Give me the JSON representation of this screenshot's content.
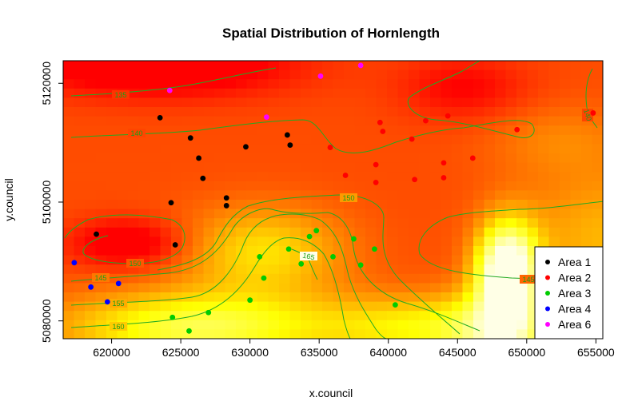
{
  "chart_data": {
    "type": "scatter",
    "title": "Spatial Distribution of Hornlength",
    "xlabel": "x.council",
    "ylabel": "y.council",
    "xlim": [
      616500,
      655500
    ],
    "ylim": [
      5077000,
      5123800
    ],
    "x_ticks": [
      "620000",
      "625000",
      "630000",
      "635000",
      "640000",
      "645000",
      "650000",
      "655000"
    ],
    "y_ticks": [
      "5080000",
      "5100000",
      "5120000"
    ],
    "x_tick_values": [
      620000,
      625000,
      630000,
      635000,
      640000,
      645000,
      650000,
      655000
    ],
    "y_tick_values": [
      5080000,
      5100000,
      5120000
    ],
    "background": "heatmap of interpolated hornlength, red (low) to pale yellow (high)",
    "contour_color": "#22aa22",
    "contour_levels": [
      "135",
      "140",
      "145",
      "150",
      "155",
      "160",
      "165"
    ],
    "legend_position": "bottom-right",
    "series": [
      {
        "name": "Area 1",
        "color": "#000000",
        "points": [
          [
            618900,
            5094600
          ],
          [
            623500,
            5114200
          ],
          [
            624300,
            5099900
          ],
          [
            624600,
            5092800
          ],
          [
            625700,
            5110800
          ],
          [
            626300,
            5107400
          ],
          [
            626600,
            5104000
          ],
          [
            628300,
            5100700
          ],
          [
            628300,
            5099400
          ],
          [
            629700,
            5109300
          ],
          [
            632700,
            5111300
          ],
          [
            632900,
            5109600
          ]
        ]
      },
      {
        "name": "Area 2",
        "color": "#ff0000",
        "points": [
          [
            635800,
            5109200
          ],
          [
            636900,
            5104500
          ],
          [
            639100,
            5106300
          ],
          [
            639100,
            5103300
          ],
          [
            639400,
            5113400
          ],
          [
            639600,
            5111900
          ],
          [
            641700,
            5110600
          ],
          [
            641900,
            5103800
          ],
          [
            642700,
            5113700
          ],
          [
            644000,
            5106600
          ],
          [
            644000,
            5104100
          ],
          [
            644300,
            5114500
          ],
          [
            646100,
            5107400
          ],
          [
            649300,
            5112200
          ],
          [
            654800,
            5115000
          ]
        ]
      },
      {
        "name": "Area 3",
        "color": "#00cc00",
        "points": [
          [
            624400,
            5080600
          ],
          [
            625600,
            5078300
          ],
          [
            627000,
            5081400
          ],
          [
            630000,
            5083500
          ],
          [
            630700,
            5090800
          ],
          [
            631000,
            5087200
          ],
          [
            632800,
            5092100
          ],
          [
            633700,
            5089600
          ],
          [
            634300,
            5094200
          ],
          [
            634800,
            5095200
          ],
          [
            636000,
            5090800
          ],
          [
            637500,
            5093800
          ],
          [
            638000,
            5089400
          ],
          [
            639000,
            5092100
          ],
          [
            640500,
            5082700
          ]
        ]
      },
      {
        "name": "Area 4",
        "color": "#0000ff",
        "points": [
          [
            617300,
            5089800
          ],
          [
            618500,
            5085700
          ],
          [
            619700,
            5083200
          ],
          [
            620500,
            5086300
          ]
        ]
      },
      {
        "name": "Area 6",
        "color": "#ff00ff",
        "points": [
          [
            624200,
            5118800
          ],
          [
            631200,
            5114300
          ],
          [
            635100,
            5121200
          ],
          [
            638000,
            5123000
          ]
        ]
      }
    ]
  }
}
